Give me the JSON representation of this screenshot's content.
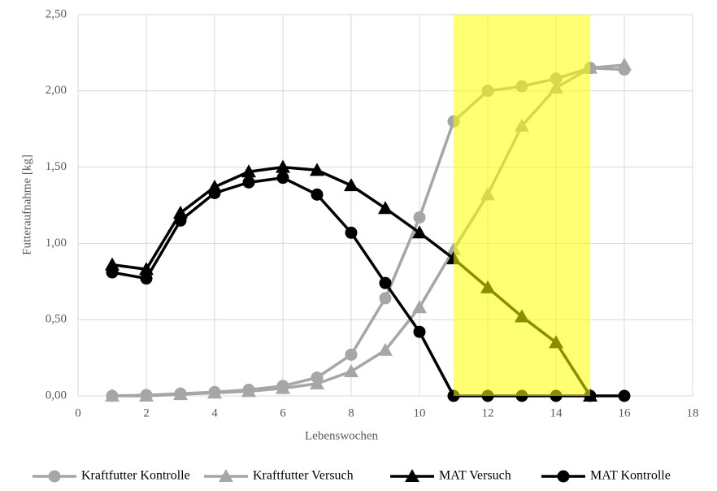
{
  "chart_data": {
    "type": "line",
    "x_label": "Lebenswochen",
    "y_label": "Futteraufnahme [kg]",
    "x": [
      1,
      2,
      3,
      4,
      5,
      6,
      7,
      8,
      9,
      10,
      11,
      12,
      13,
      14,
      15,
      16
    ],
    "series": [
      {
        "name": "Kraftfutter Kontrolle",
        "color": "#a6a6a6",
        "marker": "circle",
        "values": [
          0,
          0.005,
          0.015,
          0.025,
          0.04,
          0.065,
          0.12,
          0.27,
          0.64,
          1.17,
          1.8,
          2.0,
          2.03,
          2.08,
          2.15,
          2.14
        ]
      },
      {
        "name": "Kraftfutter Versuch",
        "color": "#a6a6a6",
        "marker": "triangle",
        "values": [
          0,
          0,
          0.01,
          0.02,
          0.03,
          0.05,
          0.08,
          0.16,
          0.3,
          0.58,
          0.96,
          1.32,
          1.77,
          2.02,
          2.15,
          2.17
        ]
      },
      {
        "name": "MAT Versuch",
        "color": "#000000",
        "marker": "triangle",
        "values": [
          0.86,
          0.83,
          1.2,
          1.37,
          1.47,
          1.5,
          1.48,
          1.38,
          1.23,
          1.07,
          0.9,
          0.71,
          0.52,
          0.35,
          0,
          null
        ]
      },
      {
        "name": "MAT Kontrolle",
        "color": "#000000",
        "marker": "circle",
        "values": [
          0.81,
          0.77,
          1.15,
          1.33,
          1.4,
          1.43,
          1.32,
          1.07,
          0.74,
          0.42,
          0,
          0,
          0,
          0,
          0,
          0
        ]
      }
    ],
    "highlight": {
      "x": [
        11,
        15
      ],
      "color": "#ffff00"
    },
    "xlim": [
      0,
      18
    ],
    "xticks": [
      0,
      2,
      4,
      6,
      8,
      10,
      12,
      14,
      16,
      18
    ],
    "ylim": [
      0,
      2.5
    ],
    "yticks": [
      {
        "value": 0,
        "label": "0,00"
      },
      {
        "value": 0.5,
        "label": "0,50"
      },
      {
        "value": 1,
        "label": "1,00"
      },
      {
        "value": 1.5,
        "label": "1,50"
      },
      {
        "value": 2,
        "label": "2,00"
      },
      {
        "value": 2.5,
        "label": "2,50"
      }
    ],
    "grid": true,
    "legend": "bottom"
  }
}
